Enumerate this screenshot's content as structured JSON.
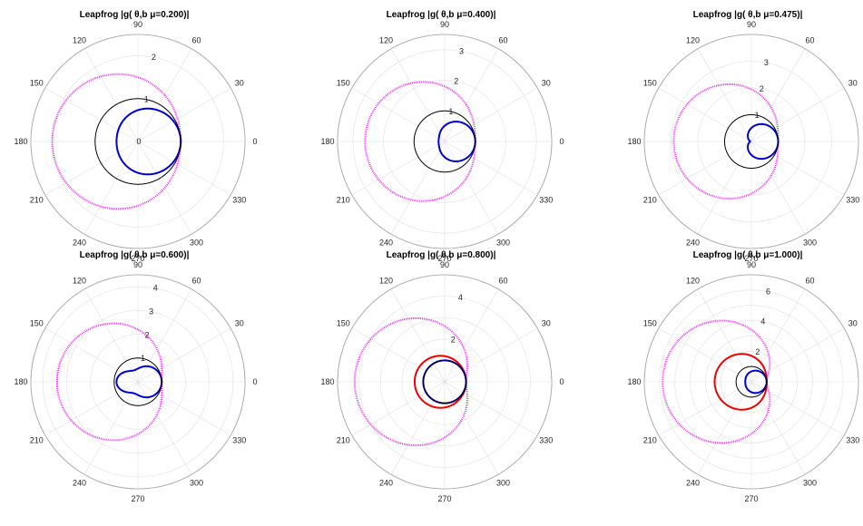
{
  "chart_data": [
    {
      "type": "polar",
      "title": "Leapfrog |g(   θ,b μ=0.200)|",
      "mu": 0.2,
      "rlim": [
        0,
        2.5
      ],
      "radial_ticks": [
        "0",
        "1",
        "2"
      ],
      "angle_ticks": [
        "0",
        "30",
        "60",
        "90",
        "120",
        "150",
        "180",
        "210",
        "240",
        "270",
        "300",
        "330"
      ],
      "grid": true,
      "series": [
        {
          "color": "#ff00ff",
          "style": "dotted",
          "formula": "cardioid_magenta",
          "r_at_0": 1.0,
          "r_at_180": 2.0
        },
        {
          "color": "#0000cc",
          "style": "solid",
          "formula": "g_plus",
          "r_at_0": 1.0,
          "r_at_180": 0.5
        },
        {
          "color": "#000000",
          "style": "solid",
          "formula": "unit_circle",
          "r": 1.0
        }
      ]
    },
    {
      "type": "polar",
      "title": "Leapfrog |g(   θ,b μ=0.400)|",
      "mu": 0.4,
      "rlim": [
        0,
        3.5
      ],
      "radial_ticks": [
        "1",
        "2",
        "3"
      ],
      "angle_ticks": [
        "0",
        "30",
        "60",
        "90",
        "120",
        "150",
        "180",
        "210",
        "240",
        "270",
        "300",
        "330"
      ],
      "grid": true,
      "series": [
        {
          "color": "#ff00ff",
          "style": "dotted",
          "formula": "cardioid_magenta",
          "r_at_0": 1.0,
          "r_at_180": 2.6
        },
        {
          "color": "#0000cc",
          "style": "solid",
          "formula": "g_plus_g_minus",
          "r_at_0": 1.0,
          "r_at_180": 0.2
        },
        {
          "color": "#000000",
          "style": "solid",
          "formula": "unit_circle",
          "r": 1.0
        }
      ]
    },
    {
      "type": "polar",
      "title": "Leapfrog |g(   θ,b μ=0.475)|",
      "mu": 0.475,
      "rlim": [
        0,
        4
      ],
      "radial_ticks": [
        "1",
        "2",
        "3"
      ],
      "angle_ticks": [
        "0",
        "30",
        "60",
        "90",
        "120",
        "150",
        "180",
        "210",
        "240",
        "270",
        "300",
        "330"
      ],
      "grid": true,
      "series": [
        {
          "color": "#ff00ff",
          "style": "dotted",
          "formula": "cardioid_magenta",
          "r_at_0": 1.0,
          "r_at_180": 2.9
        },
        {
          "color": "#0000cc",
          "style": "solid",
          "formula": "g_plus_g_minus",
          "r_at_0": 1.0,
          "r_at_180": 0.05
        },
        {
          "color": "#000000",
          "style": "solid",
          "formula": "unit_circle",
          "r": 1.0
        }
      ]
    },
    {
      "type": "polar",
      "title": "Leapfrog |g(   θ,b μ=0.600)|",
      "mu": 0.6,
      "rlim": [
        0,
        4.5
      ],
      "radial_ticks": [
        "1",
        "2",
        "3",
        "4"
      ],
      "angle_ticks": [
        "0",
        "30",
        "60",
        "90",
        "120",
        "150",
        "180",
        "210",
        "240",
        "270",
        "300",
        "330"
      ],
      "grid": true,
      "series": [
        {
          "color": "#ff00ff",
          "style": "dotted",
          "formula": "cardioid_magenta",
          "r_at_0": 1.0,
          "r_at_180": 3.4
        },
        {
          "color": "#0000cc",
          "style": "solid",
          "formula": "g_plus_g_minus",
          "r_at_0": 1.0,
          "r_at_180": 0.9
        },
        {
          "color": "#000000",
          "style": "solid",
          "formula": "unit_circle",
          "r": 1.0
        }
      ]
    },
    {
      "type": "polar",
      "title": "Leapfrog |g(   θ,b μ=0.800)|",
      "mu": 0.8,
      "rlim": [
        0,
        5
      ],
      "radial_ticks": [
        "2",
        "4"
      ],
      "angle_ticks": [
        "0",
        "30",
        "60",
        "90",
        "120",
        "150",
        "180",
        "210",
        "240",
        "270",
        "300",
        "330"
      ],
      "grid": true,
      "series": [
        {
          "color": "#ff00ff",
          "style": "dotted",
          "formula": "cardioid_magenta",
          "r_at_0": 1.0,
          "r_at_180": 4.2
        },
        {
          "color": "#ee0000",
          "style": "solid",
          "formula": "g_minus",
          "r_at_0": 1.0,
          "r_at_180": 1.4
        },
        {
          "color": "#0000cc",
          "style": "solid",
          "formula": "g_plus",
          "r_at_0": 1.0,
          "r_at_180": 1.0
        },
        {
          "color": "#000000",
          "style": "solid",
          "formula": "unit_circle",
          "r": 1.0
        }
      ]
    },
    {
      "type": "polar",
      "title": "Leapfrog |g(   θ,b μ=1.000)|",
      "mu": 1.0,
      "rlim": [
        0,
        7
      ],
      "radial_ticks": [
        "2",
        "4",
        "6"
      ],
      "angle_ticks": [
        "0",
        "30",
        "60",
        "90",
        "120",
        "150",
        "180",
        "210",
        "240",
        "270",
        "300",
        "330"
      ],
      "grid": true,
      "series": [
        {
          "color": "#ff00ff",
          "style": "dotted",
          "formula": "cardioid_magenta",
          "r_at_0": 1.0,
          "r_at_180": 5.8
        },
        {
          "color": "#ee0000",
          "style": "solid",
          "formula": "g_minus",
          "r_at_0": 1.0,
          "r_at_180": 2.4
        },
        {
          "color": "#0000cc",
          "style": "solid",
          "formula": "g_plus",
          "r_at_0": 1.0,
          "r_at_180": 0.4
        },
        {
          "color": "#000000",
          "style": "solid",
          "formula": "unit_circle",
          "r": 1.0
        }
      ]
    }
  ]
}
